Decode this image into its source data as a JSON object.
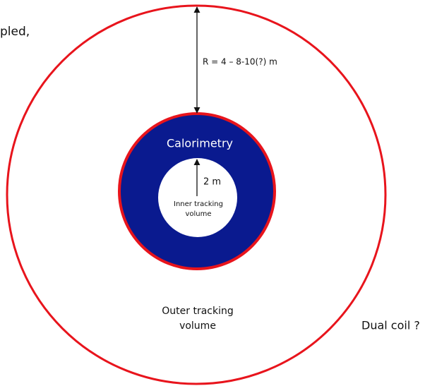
{
  "header": {
    "fragment": "pled,"
  },
  "labels": {
    "radius": "R = 4 – 8-10(?) m",
    "calorimetry": "Calorimetry",
    "inner_radius": "2 m",
    "inner_volume": [
      "Inner tracking",
      "volume"
    ],
    "outer_volume": [
      "Outer tracking",
      "volume"
    ],
    "coil": "Dual coil ?"
  }
}
